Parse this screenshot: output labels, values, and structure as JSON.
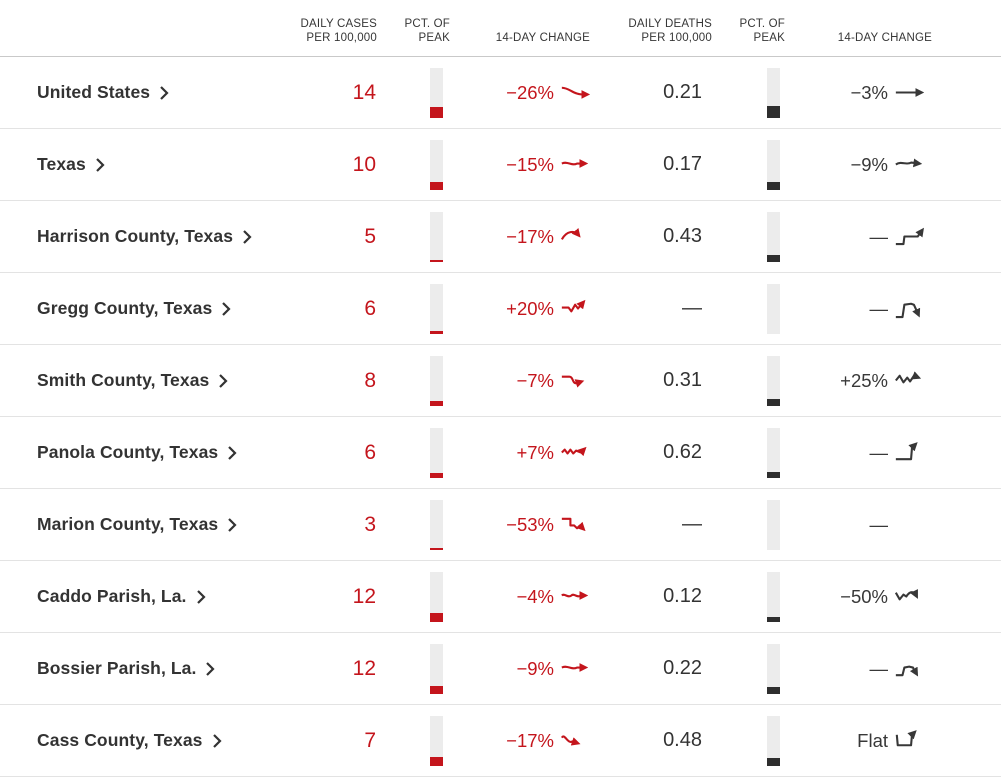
{
  "colors": {
    "cases_red": "#c4151c",
    "deaths_dark": "#383838",
    "bar_bg": "#ececec",
    "bar_dark": "#2e2e2e"
  },
  "header": {
    "daily_cases_l1": "DAILY CASES",
    "daily_cases_l2": "PER 100,000",
    "pct_peak_1_l1": "PCT. OF",
    "pct_peak_1_l2": "PEAK",
    "change_cases": "14-DAY CHANGE",
    "daily_deaths_l1": "DAILY DEATHS",
    "daily_deaths_l2": "PER 100,000",
    "pct_peak_2_l1": "PCT. OF",
    "pct_peak_2_l2": "PEAK",
    "change_deaths": "14-DAY CHANGE"
  },
  "rows": [
    {
      "name": "United States",
      "cases": "14",
      "cases_peak_pct": 22,
      "cases_change": "−26%",
      "cases_spark": "slope-down-flat",
      "deaths": "0.21",
      "deaths_peak_pct": 24,
      "deaths_change": "−3%",
      "deaths_spark": "flat-right"
    },
    {
      "name": "Texas",
      "cases": "10",
      "cases_peak_pct": 16,
      "cases_change": "−15%",
      "cases_spark": "gentle-wave",
      "deaths": "0.17",
      "deaths_peak_pct": 16,
      "deaths_change": "−9%",
      "deaths_spark": "soft-hump"
    },
    {
      "name": "Harrison County, Texas",
      "cases": "5",
      "cases_peak_pct": 4,
      "cases_change": "−17%",
      "cases_spark": "arc-down",
      "deaths": "0.43",
      "deaths_peak_pct": 14,
      "deaths_change": "—",
      "deaths_spark": "step-up-mid"
    },
    {
      "name": "Gregg County, Texas",
      "cases": "6",
      "cases_peak_pct": 6,
      "cases_change": "+20%",
      "cases_spark": "dip-then-surge",
      "deaths": "—",
      "deaths_peak_pct": 0,
      "deaths_change": "—",
      "deaths_spark": "plateau-drop"
    },
    {
      "name": "Smith County, Texas",
      "cases": "8",
      "cases_peak_pct": 10,
      "cases_change": "−7%",
      "cases_spark": "drop-recover",
      "deaths": "0.31",
      "deaths_peak_pct": 14,
      "deaths_change": "+25%",
      "deaths_spark": "zigzag-rise"
    },
    {
      "name": "Panola County, Texas",
      "cases": "6",
      "cases_peak_pct": 10,
      "cases_change": "+7%",
      "cases_spark": "zigzag-drift-up",
      "deaths": "0.62",
      "deaths_peak_pct": 12,
      "deaths_change": "—",
      "deaths_spark": "late-step-up"
    },
    {
      "name": "Marion County, Texas",
      "cases": "3",
      "cases_peak_pct": 4,
      "cases_change": "−53%",
      "cases_spark": "step-down-wiggle",
      "deaths": "—",
      "deaths_peak_pct": 0,
      "deaths_change": "—",
      "deaths_spark": null
    },
    {
      "name": "Caddo Parish, La.",
      "cases": "12",
      "cases_peak_pct": 18,
      "cases_change": "−4%",
      "cases_spark": "wavy-flat",
      "deaths": "0.12",
      "deaths_peak_pct": 10,
      "deaths_change": "−50%",
      "deaths_spark": "v-dip-curl"
    },
    {
      "name": "Bossier Parish, La.",
      "cases": "12",
      "cases_peak_pct": 16,
      "cases_change": "−9%",
      "cases_spark": "gentle-wave",
      "deaths": "0.22",
      "deaths_peak_pct": 14,
      "deaths_change": "—",
      "deaths_spark": "hump-drop"
    },
    {
      "name": "Cass County, Texas",
      "cases": "7",
      "cases_peak_pct": 18,
      "cases_change": "−17%",
      "cases_spark": "wave-dip",
      "deaths": "0.48",
      "deaths_peak_pct": 16,
      "deaths_change": "Flat",
      "deaths_spark": "u-recover"
    }
  ]
}
